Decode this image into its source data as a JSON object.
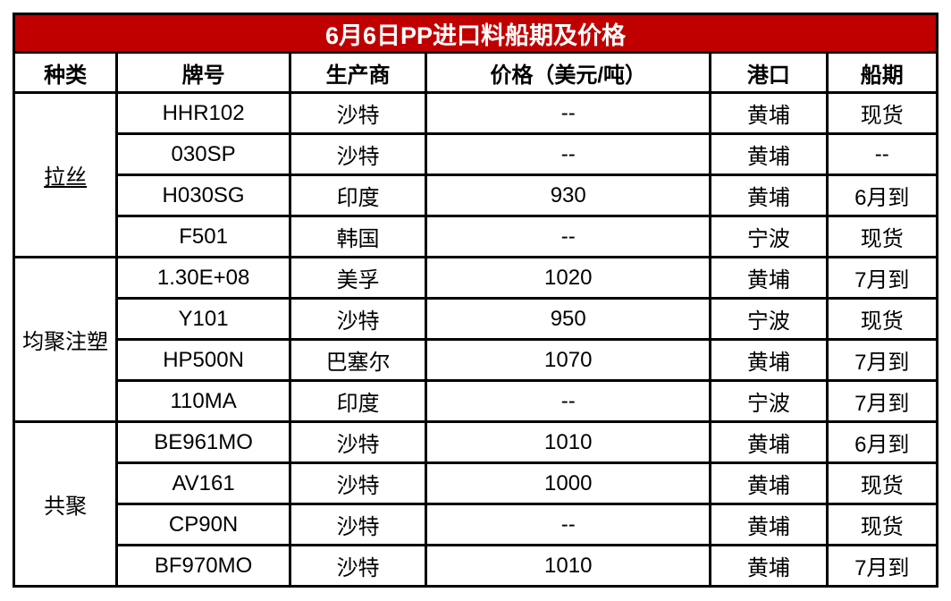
{
  "title": "6月6日PP进口料船期及价格",
  "colors": {
    "banner_bg": "#C00000",
    "banner_text": "#FFFFFF",
    "border": "#000000",
    "cell_bg": "#FFFFFF",
    "cell_text": "#000000"
  },
  "columns": {
    "category": "种类",
    "brand": "牌号",
    "producer": "生产商",
    "price": "价格（美元/吨）",
    "port": "港口",
    "schedule": "船期"
  },
  "groups": [
    {
      "category": "拉丝",
      "rows": [
        {
          "brand": "HHR102",
          "producer": "沙特",
          "price": "--",
          "port": "黄埔",
          "schedule": "现货"
        },
        {
          "brand": "030SP",
          "producer": "沙特",
          "price": "--",
          "port": "黄埔",
          "schedule": "--"
        },
        {
          "brand": "H030SG",
          "producer": "印度",
          "price": "930",
          "port": "黄埔",
          "schedule": "6月到"
        },
        {
          "brand": "F501",
          "producer": "韩国",
          "price": "--",
          "port": "宁波",
          "schedule": "现货"
        }
      ]
    },
    {
      "category": "均聚注塑",
      "rows": [
        {
          "brand": "1.30E+08",
          "producer": "美孚",
          "price": "1020",
          "port": "黄埔",
          "schedule": "7月到"
        },
        {
          "brand": "Y101",
          "producer": "沙特",
          "price": "950",
          "port": "宁波",
          "schedule": "现货"
        },
        {
          "brand": "HP500N",
          "producer": "巴塞尔",
          "price": "1070",
          "port": "黄埔",
          "schedule": "7月到"
        },
        {
          "brand": "110MA",
          "producer": "印度",
          "price": "--",
          "port": "宁波",
          "schedule": "7月到"
        }
      ]
    },
    {
      "category": "共聚",
      "rows": [
        {
          "brand": "BE961MO",
          "producer": "沙特",
          "price": "1010",
          "port": "黄埔",
          "schedule": "6月到"
        },
        {
          "brand": "AV161",
          "producer": "沙特",
          "price": "1000",
          "port": "黄埔",
          "schedule": "现货"
        },
        {
          "brand": "CP90N",
          "producer": "沙特",
          "price": "--",
          "port": "黄埔",
          "schedule": "现货"
        },
        {
          "brand": "BF970MO",
          "producer": "沙特",
          "price": "1010",
          "port": "黄埔",
          "schedule": "7月到"
        }
      ]
    }
  ]
}
